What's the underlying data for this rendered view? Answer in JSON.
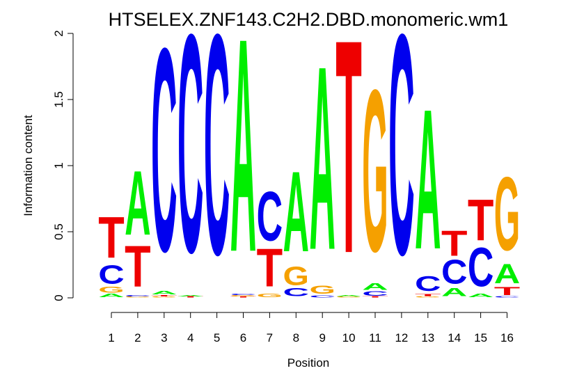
{
  "chart_data": {
    "type": "sequence-logo",
    "title": "HTSELEX.ZNF143.C2H2.DBD.monomeric.wm1",
    "xlabel": "Position",
    "ylabel": "Information content",
    "ylim": [
      0,
      2
    ],
    "yticks": [
      "0",
      "0.5",
      "1",
      "1.5",
      "2"
    ],
    "colors": {
      "A": "#00ee00",
      "C": "#0000ee",
      "G": "#f5a000",
      "T": "#ee0000"
    },
    "positions": [
      {
        "label": "1",
        "letters": [
          {
            "l": "A",
            "h": 0.03
          },
          {
            "l": "G",
            "h": 0.05
          },
          {
            "l": "C",
            "h": 0.16
          },
          {
            "l": "T",
            "h": 0.36
          }
        ]
      },
      {
        "label": "2",
        "letters": [
          {
            "l": "G",
            "h": 0.01
          },
          {
            "l": "C",
            "h": 0.01
          },
          {
            "l": "T",
            "h": 0.36
          },
          {
            "l": "A",
            "h": 0.56
          }
        ]
      },
      {
        "label": "3",
        "letters": [
          {
            "l": "G",
            "h": 0.01
          },
          {
            "l": "T",
            "h": 0.01
          },
          {
            "l": "A",
            "h": 0.03
          },
          {
            "l": "C",
            "h": 1.77
          }
        ]
      },
      {
        "label": "4",
        "letters": [
          {
            "l": "T",
            "h": 0.01
          },
          {
            "l": "A",
            "h": 0.01
          },
          {
            "l": "C",
            "h": 1.9
          }
        ]
      },
      {
        "label": "5",
        "letters": [
          {
            "l": "C",
            "h": 1.92
          }
        ]
      },
      {
        "label": "6",
        "letters": [
          {
            "l": "T",
            "h": 0.01
          },
          {
            "l": "G",
            "h": 0.01
          },
          {
            "l": "C",
            "h": 0.01
          },
          {
            "l": "A",
            "h": 1.86
          }
        ]
      },
      {
        "label": "7",
        "letters": [
          {
            "l": "G",
            "h": 0.03
          },
          {
            "l": "T",
            "h": 0.33
          },
          {
            "l": "C",
            "h": 0.43
          }
        ]
      },
      {
        "label": "8",
        "letters": [
          {
            "l": "C",
            "h": 0.07
          },
          {
            "l": "G",
            "h": 0.16
          },
          {
            "l": "A",
            "h": 0.7
          }
        ]
      },
      {
        "label": "9",
        "letters": [
          {
            "l": "C",
            "h": 0.02
          },
          {
            "l": "G",
            "h": 0.07
          },
          {
            "l": "A",
            "h": 1.6
          }
        ]
      },
      {
        "label": "10",
        "letters": [
          {
            "l": "G",
            "h": 0.01
          },
          {
            "l": "A",
            "h": 0.01
          },
          {
            "l": "T",
            "h": 1.86
          }
        ]
      },
      {
        "label": "11",
        "letters": [
          {
            "l": "T",
            "h": 0.01
          },
          {
            "l": "C",
            "h": 0.04
          },
          {
            "l": "A",
            "h": 0.06
          },
          {
            "l": "G",
            "h": 1.41
          }
        ]
      },
      {
        "label": "12",
        "letters": [
          {
            "l": "C",
            "h": 1.92
          }
        ]
      },
      {
        "label": "13",
        "letters": [
          {
            "l": "G",
            "h": 0.01
          },
          {
            "l": "T",
            "h": 0.02
          },
          {
            "l": "C",
            "h": 0.13
          },
          {
            "l": "A",
            "h": 1.22
          }
        ]
      },
      {
        "label": "14",
        "letters": [
          {
            "l": "A",
            "h": 0.07
          },
          {
            "l": "C",
            "h": 0.21
          },
          {
            "l": "T",
            "h": 0.22
          }
        ]
      },
      {
        "label": "15",
        "letters": [
          {
            "l": "A",
            "h": 0.03
          },
          {
            "l": "C",
            "h": 0.34
          },
          {
            "l": "T",
            "h": 0.36
          }
        ]
      },
      {
        "label": "16",
        "letters": [
          {
            "l": "C",
            "h": 0.01
          },
          {
            "l": "T",
            "h": 0.07
          },
          {
            "l": "A",
            "h": 0.17
          },
          {
            "l": "G",
            "h": 0.64
          }
        ]
      }
    ]
  }
}
